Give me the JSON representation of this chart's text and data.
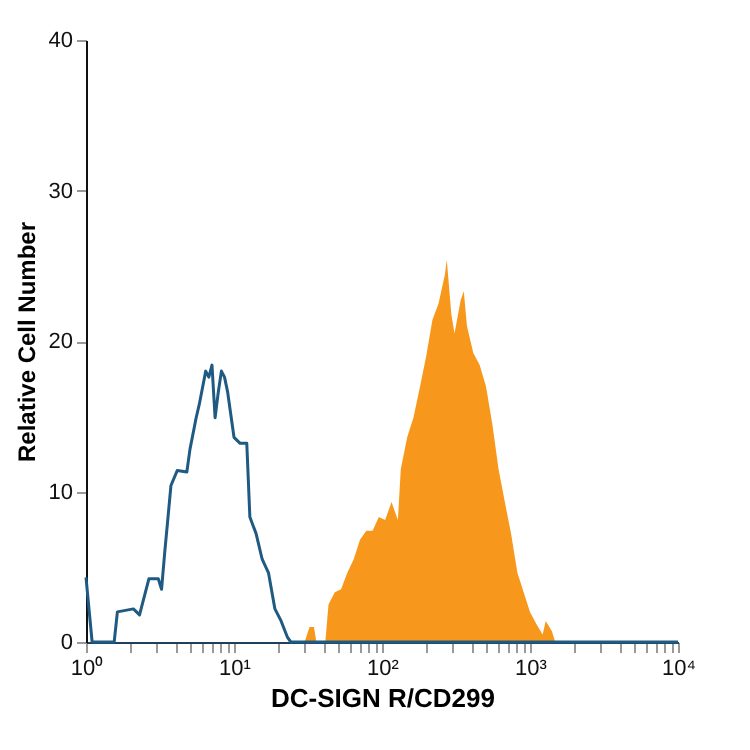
{
  "chart_data": {
    "type": "area",
    "xlabel": "DC-SIGN R/CD299",
    "ylabel": "Relative Cell Number",
    "log": "x",
    "grid": false,
    "xlim": [
      1,
      10000
    ],
    "ylim": [
      0,
      40
    ],
    "yticks": [
      0,
      10,
      20,
      30,
      40
    ],
    "xticks": [
      {
        "value": 1,
        "label": "10⁰"
      },
      {
        "value": 2,
        "label": null
      },
      {
        "value": 3,
        "label": null
      },
      {
        "value": 4,
        "label": null
      },
      {
        "value": 5,
        "label": null
      },
      {
        "value": 6,
        "label": null
      },
      {
        "value": 7,
        "label": null
      },
      {
        "value": 8,
        "label": null
      },
      {
        "value": 9,
        "label": null
      },
      {
        "value": 10,
        "label": "10¹"
      },
      {
        "value": 20,
        "label": null
      },
      {
        "value": 30,
        "label": null
      },
      {
        "value": 40,
        "label": null
      },
      {
        "value": 50,
        "label": null
      },
      {
        "value": 60,
        "label": null
      },
      {
        "value": 70,
        "label": null
      },
      {
        "value": 80,
        "label": null
      },
      {
        "value": 90,
        "label": null
      },
      {
        "value": 100,
        "label": "10²"
      },
      {
        "value": 200,
        "label": null
      },
      {
        "value": 300,
        "label": null
      },
      {
        "value": 400,
        "label": null
      },
      {
        "value": 500,
        "label": null
      },
      {
        "value": 600,
        "label": null
      },
      {
        "value": 700,
        "label": null
      },
      {
        "value": 800,
        "label": null
      },
      {
        "value": 900,
        "label": null
      },
      {
        "value": 1000,
        "label": "10³"
      },
      {
        "value": 2000,
        "label": null
      },
      {
        "value": 3000,
        "label": null
      },
      {
        "value": 4000,
        "label": null
      },
      {
        "value": 5000,
        "label": null
      },
      {
        "value": 6000,
        "label": null
      },
      {
        "value": 7000,
        "label": null
      },
      {
        "value": 8000,
        "label": null
      },
      {
        "value": 9000,
        "label": null
      },
      {
        "value": 10000,
        "label": "10⁴"
      }
    ],
    "series": [
      {
        "color": "#f7981d",
        "x": [
          1.7,
          30,
          32.4,
          34.7,
          36,
          41.4,
          43.5,
          48,
          52.9,
          58.3,
          64.4,
          71,
          78.3,
          86.4,
          95.2,
          105,
          116,
          128,
          134,
          148,
          163,
          180,
          199,
          219,
          241,
          266,
          274,
          294,
          309,
          340,
          357,
          375,
          414,
          457,
          504,
          556,
          613,
          676,
          745,
          822,
          906,
          1000,
          1104,
          1217,
          1277,
          1409,
          1479
        ],
        "values": [
          0,
          0,
          1,
          1,
          0,
          0,
          2.5,
          3.3,
          3.5,
          4.6,
          5.5,
          6.8,
          7.4,
          7.4,
          8.3,
          8.1,
          9.3,
          8.1,
          11.5,
          13.6,
          14.9,
          16.9,
          19,
          21.4,
          22.5,
          24.4,
          25.4,
          21.8,
          20.5,
          22.7,
          23.3,
          21,
          19.2,
          18.4,
          17,
          14.5,
          11.5,
          9.3,
          7.2,
          4.6,
          3.3,
          2,
          1.2,
          0.5,
          1.4,
          0.7,
          0
        ]
      },
      {
        "type": "line",
        "color": "#1f5a82",
        "x": [
          1,
          1.1,
          1.55,
          1.63,
          2.09,
          2.3,
          2.66,
          3.08,
          3.24,
          3.4,
          3.75,
          4.14,
          4.8,
          5.04,
          5.55,
          5.83,
          6.44,
          6.76,
          7.1,
          7.45,
          7.83,
          8.22,
          8.63,
          9.06,
          10,
          11,
          12.2,
          12.8,
          14.1,
          15.5,
          17.1,
          18.9,
          20.8,
          23,
          24.2,
          10000
        ],
        "values": [
          4.3,
          0,
          0,
          2,
          2.2,
          1.8,
          4.2,
          4.2,
          3.5,
          5.9,
          10.4,
          11.4,
          11.3,
          12.8,
          14.9,
          15.8,
          18,
          17.6,
          18.4,
          14.9,
          16.6,
          18,
          17.6,
          16.6,
          13.6,
          13.2,
          13.2,
          8.3,
          7.2,
          5.5,
          4.6,
          2.2,
          1.4,
          0.3,
          0,
          0
        ]
      }
    ]
  }
}
